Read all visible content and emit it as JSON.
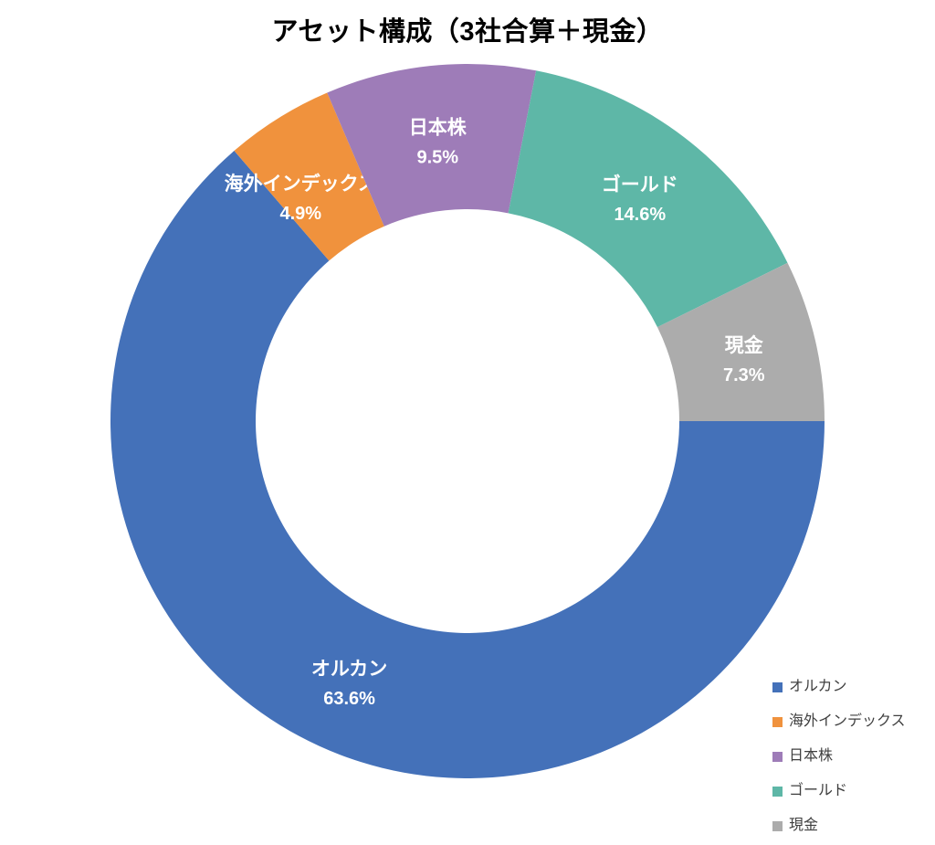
{
  "chart_data": {
    "type": "pie",
    "subtype": "donut",
    "title": "アセット構成（3社合算＋現金）",
    "legend_position": "bottom-right",
    "start_angle_deg": 90,
    "direction": "clockwise",
    "label_text_color": "#FFFFFF",
    "legend_text_color": "#3F3F3F",
    "title_color": "#000000",
    "background_color": "#FFFFFF",
    "slices": [
      {
        "label": "オルカン",
        "value": 63.6,
        "pct_label": "63.6%",
        "color": "#4471B9"
      },
      {
        "label": "海外インデックス",
        "value": 4.9,
        "pct_label": "4.9%",
        "color": "#F0923D"
      },
      {
        "label": "日本株",
        "value": 9.5,
        "pct_label": "9.5%",
        "color": "#9E7CB8"
      },
      {
        "label": "ゴールド",
        "value": 14.6,
        "pct_label": "14.6%",
        "color": "#5EB7A7"
      },
      {
        "label": "現金",
        "value": 7.3,
        "pct_label": "7.3%",
        "color": "#ACACAC"
      }
    ]
  }
}
